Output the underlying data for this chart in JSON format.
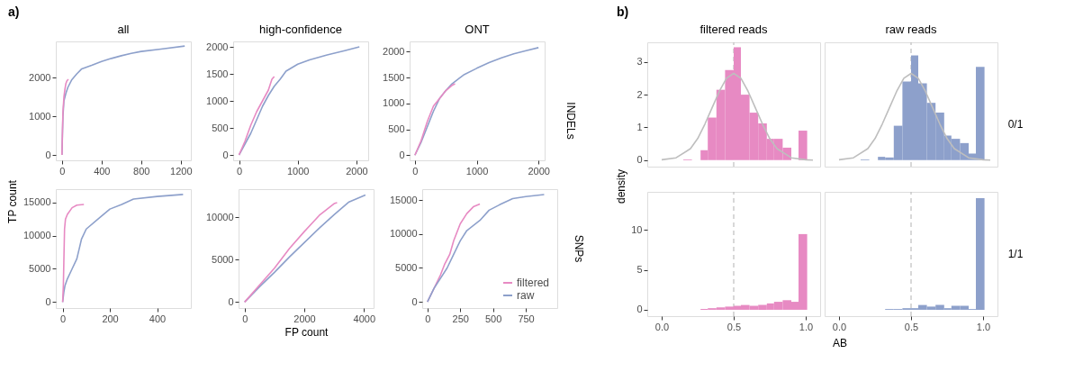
{
  "chart_data": [
    {
      "type": "line",
      "title": "all",
      "ylabel": "TP count",
      "annotations": [
        "a)"
      ],
      "xlim": [
        -62,
        1302
      ],
      "xticks": [
        0,
        400,
        800,
        1200
      ],
      "ylim": [
        -140,
        2940
      ],
      "yticks": [
        0,
        1000,
        2000
      ],
      "series": [
        {
          "color": "#8da0cb",
          "x": [
            0,
            5,
            10,
            20,
            40,
            60,
            100,
            150,
            200,
            300,
            400,
            500,
            600,
            700,
            800,
            1000,
            1240
          ],
          "values": [
            0,
            500,
            1000,
            1400,
            1600,
            1750,
            1950,
            2100,
            2230,
            2320,
            2420,
            2500,
            2570,
            2630,
            2680,
            2740,
            2820
          ]
        },
        {
          "color": "#e78ac3",
          "x": [
            0,
            5,
            10,
            20,
            30,
            40,
            50,
            65
          ],
          "values": [
            0,
            600,
            1100,
            1500,
            1700,
            1850,
            1920,
            1960
          ]
        }
      ]
    },
    {
      "type": "line",
      "title": "high-confidence",
      "xlim": [
        -100,
        2200
      ],
      "xticks": [
        0,
        1000,
        2000
      ],
      "ylim": [
        -100,
        2100
      ],
      "yticks": [
        0,
        500,
        1000,
        1500,
        2000
      ],
      "series": [
        {
          "color": "#8da0cb",
          "x": [
            0,
            100,
            200,
            300,
            400,
            500,
            600,
            700,
            800,
            1000,
            1200,
            1500,
            1800,
            2050
          ],
          "values": [
            0,
            200,
            400,
            650,
            900,
            1100,
            1270,
            1400,
            1550,
            1680,
            1760,
            1850,
            1930,
            2000
          ]
        },
        {
          "color": "#e78ac3",
          "x": [
            0,
            100,
            200,
            300,
            400,
            500,
            560,
            600
          ],
          "values": [
            0,
            250,
            550,
            800,
            1000,
            1200,
            1400,
            1450
          ]
        }
      ]
    },
    {
      "type": "line",
      "title": "ONT",
      "annotations": [
        "INDELs"
      ],
      "xlim": [
        -86,
        2100
      ],
      "xticks": [
        0,
        1000,
        2000
      ],
      "ylim": [
        -100,
        2200
      ],
      "yticks": [
        0,
        500,
        1000,
        1500,
        2000
      ],
      "series": [
        {
          "color": "#8da0cb",
          "x": [
            0,
            100,
            200,
            300,
            400,
            500,
            600,
            800,
            1000,
            1200,
            1400,
            1600,
            1800,
            2000
          ],
          "values": [
            0,
            250,
            550,
            850,
            1100,
            1250,
            1380,
            1560,
            1680,
            1790,
            1880,
            1960,
            2020,
            2080
          ]
        },
        {
          "color": "#e78ac3",
          "x": [
            0,
            100,
            200,
            300,
            400,
            500,
            600,
            650
          ],
          "values": [
            0,
            280,
            650,
            950,
            1100,
            1250,
            1350,
            1380
          ]
        }
      ]
    },
    {
      "type": "line",
      "xlim": [
        -29,
        543
      ],
      "xticks": [
        0,
        200,
        400
      ],
      "ylim": [
        -900,
        17000
      ],
      "yticks": [
        0,
        5000,
        10000,
        15000
      ],
      "series": [
        {
          "color": "#8da0cb",
          "x": [
            0,
            5,
            10,
            20,
            40,
            60,
            70,
            80,
            100,
            150,
            200,
            250,
            300,
            400,
            510
          ],
          "values": [
            0,
            1500,
            2500,
            3500,
            5000,
            6500,
            8000,
            9500,
            11000,
            12500,
            14000,
            14700,
            15500,
            15900,
            16200
          ]
        },
        {
          "color": "#e78ac3",
          "x": [
            0,
            3,
            5,
            8,
            12,
            20,
            40,
            60,
            90
          ],
          "values": [
            0,
            2500,
            6000,
            11000,
            12500,
            13200,
            14200,
            14600,
            14700
          ]
        }
      ]
    },
    {
      "type": "line",
      "xlabel": "FP count",
      "xlim": [
        -203,
        4324
      ],
      "xticks": [
        0,
        2000,
        4000
      ],
      "ylim": [
        -700,
        13300
      ],
      "yticks": [
        0,
        5000,
        10000
      ],
      "series": [
        {
          "color": "#8da0cb",
          "x": [
            0,
            500,
            1000,
            1500,
            2000,
            2500,
            3000,
            3500,
            4050
          ],
          "values": [
            0,
            1800,
            3500,
            5300,
            7000,
            8700,
            10300,
            11800,
            12600
          ]
        },
        {
          "color": "#e78ac3",
          "x": [
            0,
            500,
            1000,
            1500,
            2000,
            2500,
            3000,
            3100
          ],
          "values": [
            0,
            2000,
            4000,
            6300,
            8300,
            10200,
            11600,
            11700
          ]
        }
      ]
    },
    {
      "type": "line",
      "annotations": [
        "SNPs"
      ],
      "legend": "bottom right",
      "xlim": [
        -40,
        990
      ],
      "xticks": [
        0,
        250,
        500,
        750
      ],
      "ylim": [
        -900,
        16600
      ],
      "yticks": [
        0,
        5000,
        10000,
        15000
      ],
      "series": [
        {
          "name": "filtered",
          "color": "#e78ac3",
          "x": [
            0,
            50,
            100,
            130,
            170,
            200,
            250,
            300,
            350,
            400
          ],
          "values": [
            0,
            2000,
            4000,
            5500,
            7000,
            9000,
            11500,
            13000,
            14000,
            14400
          ]
        },
        {
          "name": "raw",
          "color": "#8da0cb",
          "x": [
            0,
            50,
            100,
            150,
            200,
            250,
            300,
            400,
            470,
            550,
            650,
            750,
            890
          ],
          "values": [
            0,
            2000,
            3500,
            5000,
            7000,
            9000,
            10500,
            12000,
            13500,
            14300,
            15200,
            15500,
            15800
          ]
        }
      ]
    },
    {
      "type": "histogram",
      "title": "filtered reads",
      "ylabel": "density",
      "annotations": [
        "b)"
      ],
      "tick_labels": "y",
      "color": "#e78ac3",
      "xlim": [
        -0.1,
        1.1
      ],
      "xticks": [
        0,
        0.5,
        1
      ],
      "ylim": [
        -0.2,
        3.6
      ],
      "yticks": [
        0,
        1,
        2,
        3
      ],
      "bins": [
        0.15,
        0.21,
        0.27,
        0.32,
        0.38,
        0.44,
        0.5,
        0.55,
        0.61,
        0.67,
        0.73,
        0.78,
        0.84,
        0.9,
        0.95,
        1.01
      ],
      "values": [
        0.02,
        0,
        0.3,
        1.3,
        2.15,
        2.75,
        3.45,
        2.0,
        1.45,
        1.12,
        0.65,
        0.65,
        0.38,
        0,
        0.9
      ],
      "ref_lines": [
        {
          "axis": "x",
          "value": 0.5,
          "color": "#bebebe",
          "line_style": "dashed"
        }
      ],
      "series": [
        {
          "type": "line",
          "color": "#bebebe",
          "x": [
            0,
            0.1,
            0.2,
            0.25,
            0.3,
            0.35,
            0.4,
            0.45,
            0.5,
            0.55,
            0.6,
            0.65,
            0.7,
            0.75,
            0.8,
            0.9,
            1.0,
            1.05
          ],
          "values": [
            0.01,
            0.07,
            0.35,
            0.66,
            1.1,
            1.6,
            2.1,
            2.5,
            2.65,
            2.5,
            2.1,
            1.6,
            1.1,
            0.66,
            0.35,
            0.07,
            0.01,
            0
          ]
        }
      ]
    },
    {
      "type": "histogram",
      "title": "raw reads",
      "annotations": [
        "0/1"
      ],
      "tick_labels": false,
      "color": "#8da0cb",
      "xlim": [
        -0.1,
        1.1
      ],
      "xticks": [
        0,
        0.5,
        1
      ],
      "ylim": [
        -0.2,
        3.6
      ],
      "yticks": [
        0,
        1,
        2,
        3
      ],
      "bins": [
        0.15,
        0.21,
        0.27,
        0.32,
        0.38,
        0.44,
        0.5,
        0.55,
        0.61,
        0.67,
        0.73,
        0.78,
        0.84,
        0.9,
        0.95,
        1.01
      ],
      "values": [
        0.02,
        0,
        0.1,
        0.08,
        1.05,
        2.4,
        3.2,
        2.35,
        1.75,
        1.45,
        0.75,
        0.65,
        0.52,
        0.2,
        2.85
      ],
      "ref_lines": [
        {
          "axis": "x",
          "value": 0.5,
          "color": "#bebebe",
          "line_style": "dashed"
        }
      ],
      "series": [
        {
          "type": "line",
          "color": "#bebebe",
          "x": [
            0,
            0.1,
            0.2,
            0.25,
            0.3,
            0.35,
            0.4,
            0.45,
            0.5,
            0.55,
            0.6,
            0.65,
            0.7,
            0.75,
            0.8,
            0.9,
            1.0,
            1.05
          ],
          "values": [
            0.01,
            0.07,
            0.35,
            0.66,
            1.1,
            1.6,
            2.1,
            2.5,
            2.65,
            2.5,
            2.1,
            1.6,
            1.1,
            0.66,
            0.35,
            0.07,
            0.01,
            0
          ]
        }
      ]
    },
    {
      "type": "histogram",
      "xlabel": "AB",
      "color": "#e78ac3",
      "xlim": [
        -0.1,
        1.1
      ],
      "xticks": [
        {
          "value": 0,
          "label": "0.0"
        },
        {
          "value": 0.5,
          "label": "0.5"
        },
        {
          "value": 1,
          "label": "1.0"
        }
      ],
      "ylim": [
        -0.8,
        14.8
      ],
      "yticks": [
        0,
        5,
        10
      ],
      "bins": [
        0.27,
        0.32,
        0.38,
        0.44,
        0.5,
        0.55,
        0.61,
        0.67,
        0.73,
        0.78,
        0.84,
        0.9,
        0.95,
        1.01
      ],
      "values": [
        0.1,
        0.2,
        0.3,
        0.4,
        0.5,
        0.6,
        0.5,
        0.6,
        0.8,
        1.0,
        1.2,
        1.0,
        9.5
      ],
      "ref_lines": [
        {
          "axis": "x",
          "value": 0.5,
          "color": "#bebebe",
          "line_style": "dashed"
        }
      ]
    },
    {
      "type": "histogram",
      "annotations": [
        "1/1"
      ],
      "tick_labels": "x",
      "color": "#8da0cb",
      "xlim": [
        -0.1,
        1.1
      ],
      "xticks": [
        {
          "value": 0,
          "label": "0.0"
        },
        {
          "value": 0.5,
          "label": "0.5"
        },
        {
          "value": 1,
          "label": "1.0"
        }
      ],
      "ylim": [
        -0.8,
        14.8
      ],
      "yticks": [
        0,
        5,
        10
      ],
      "bins": [
        0.32,
        0.38,
        0.44,
        0.5,
        0.55,
        0.61,
        0.67,
        0.73,
        0.78,
        0.84,
        0.9,
        0.95,
        1.01
      ],
      "values": [
        0.1,
        0.1,
        0.2,
        0.2,
        0.6,
        0.4,
        0.6,
        0.2,
        0.5,
        0.5,
        0.1,
        14.0
      ],
      "ref_lines": [
        {
          "axis": "x",
          "value": 0.5,
          "color": "#bebebe",
          "line_style": "dashed"
        }
      ]
    }
  ]
}
